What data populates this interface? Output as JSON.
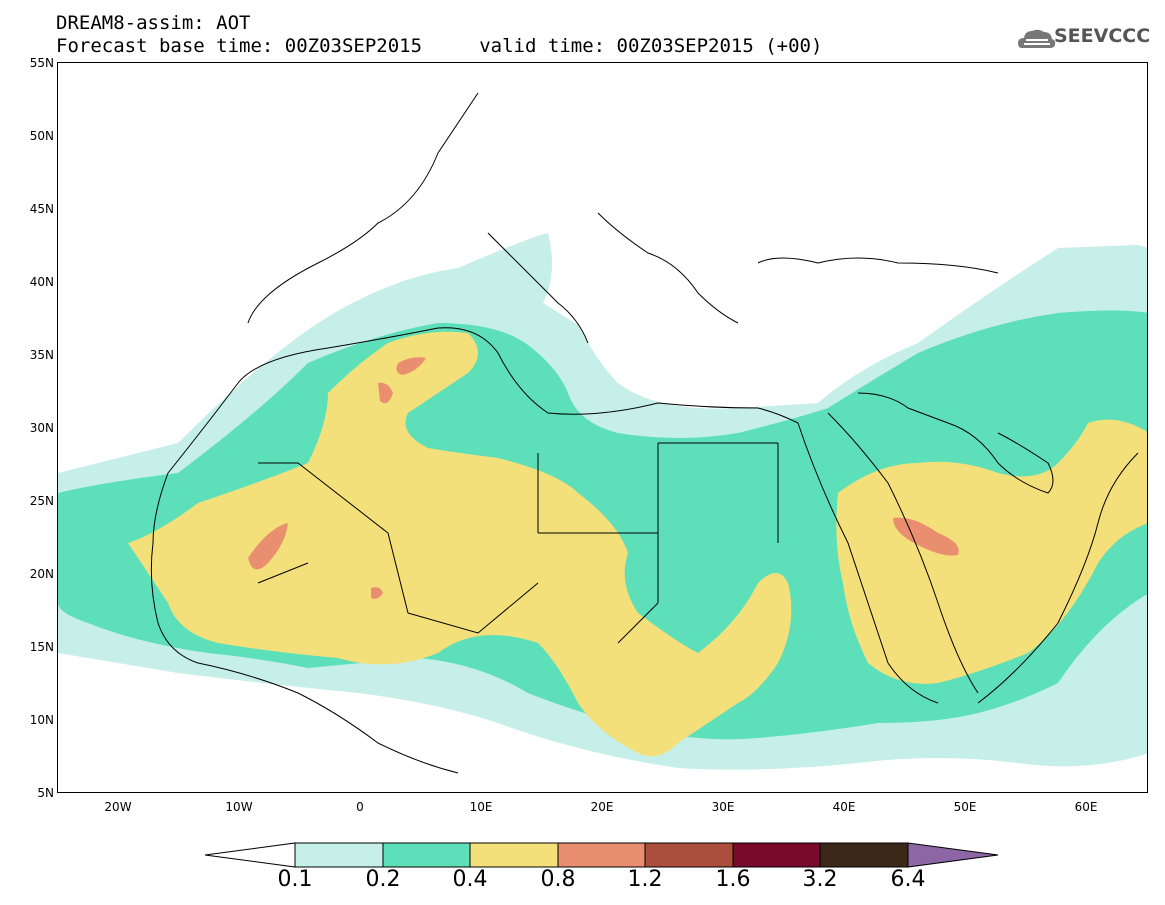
{
  "header": {
    "title_line1": "DREAM8-assim: AOT",
    "title_line2": "Forecast base time: 00Z03SEP2015     valid time: 00Z03SEP2015 (+00)"
  },
  "logo": {
    "text": "SEEVCCC",
    "icon": "cloud-logo-icon"
  },
  "map": {
    "lat_labels": [
      "55N",
      "50N",
      "45N",
      "40N",
      "35N",
      "30N",
      "25N",
      "20N",
      "15N",
      "10N",
      "5N"
    ],
    "lon_labels": [
      "20W",
      "10W",
      "0",
      "10E",
      "20E",
      "30E",
      "40E",
      "50E",
      "60E"
    ],
    "extent": {
      "lon_min": -25,
      "lon_max": 65,
      "lat_min": 5,
      "lat_max": 55
    }
  },
  "legend": {
    "labels": [
      "0.1",
      "0.2",
      "0.4",
      "0.8",
      "1.2",
      "1.6",
      "3.2",
      "6.4"
    ],
    "colors": [
      "#ffffff",
      "#c5efe8",
      "#5ddfb9",
      "#f4e07a",
      "#e98f6f",
      "#ab4e3e",
      "#7a0a2c",
      "#3c2818",
      "#8d66a6"
    ]
  }
}
